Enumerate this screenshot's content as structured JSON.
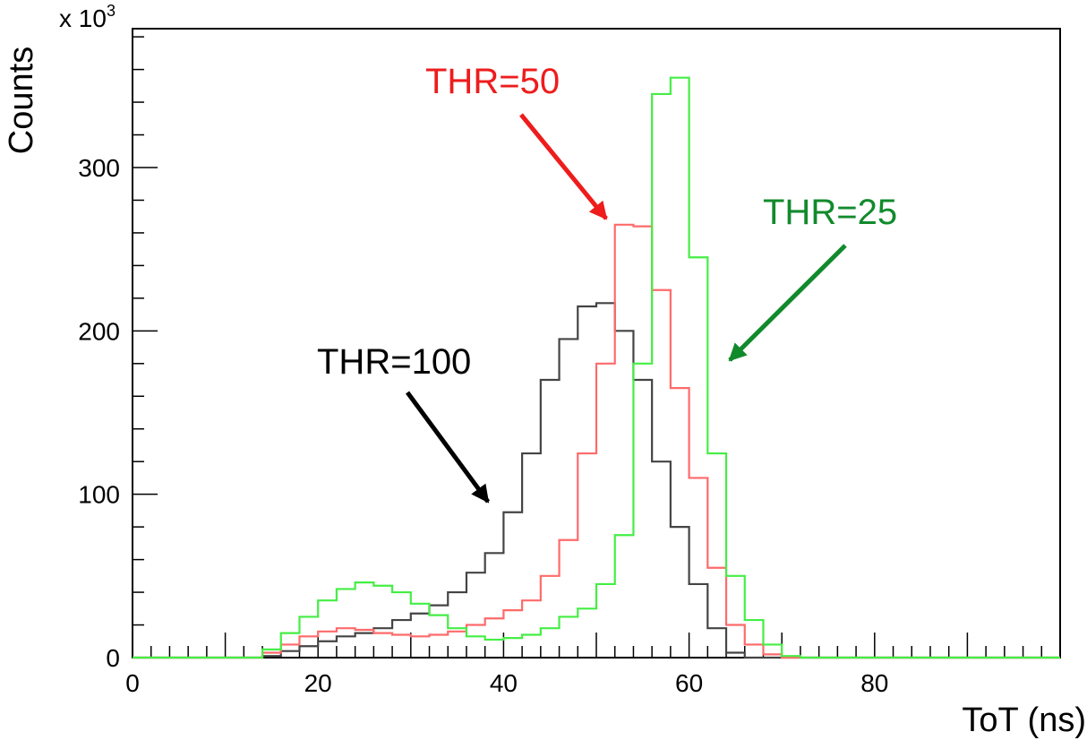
{
  "chart_data": {
    "type": "line",
    "step": true,
    "xlabel": "ToT (ns)",
    "ylabel": "Counts",
    "y_multiplier": "x 10",
    "y_multiplier_exp": "3",
    "xlim": [
      0,
      100
    ],
    "ylim": [
      0,
      385
    ],
    "x_ticks": [
      0,
      20,
      40,
      60,
      80
    ],
    "y_ticks": [
      0,
      100,
      200,
      300
    ],
    "grid": false,
    "bin_edges": [
      0,
      2,
      4,
      6,
      8,
      10,
      12,
      14,
      16,
      18,
      20,
      22,
      24,
      26,
      28,
      30,
      32,
      34,
      36,
      38,
      40,
      42,
      44,
      46,
      48,
      50,
      52,
      54,
      56,
      58,
      60,
      62,
      64,
      66,
      68,
      70,
      72,
      74,
      76,
      78,
      80,
      82,
      84,
      86,
      88,
      90,
      92,
      94,
      96,
      98,
      100
    ],
    "series": [
      {
        "name": "THR=100",
        "color": "#444444",
        "values": [
          0,
          0,
          0,
          0,
          0,
          0,
          0,
          1,
          4,
          7,
          10,
          13,
          15,
          18,
          23,
          27,
          32,
          40,
          52,
          64,
          89,
          125,
          170,
          195,
          215,
          217,
          200,
          170,
          120,
          80,
          45,
          18,
          3,
          0,
          0,
          0,
          0,
          0,
          0,
          0,
          0,
          0,
          0,
          0,
          0,
          0,
          0,
          0,
          0,
          0
        ]
      },
      {
        "name": "THR=50",
        "color": "#ff6a6a",
        "values": [
          0,
          0,
          0,
          0,
          0,
          0,
          0,
          3,
          8,
          13,
          16,
          18,
          17,
          15,
          14,
          13,
          14,
          16,
          20,
          24,
          29,
          35,
          50,
          72,
          125,
          180,
          265,
          264,
          225,
          165,
          110,
          55,
          20,
          8,
          2,
          0,
          0,
          0,
          0,
          0,
          0,
          0,
          0,
          0,
          0,
          0,
          0,
          0,
          0,
          0
        ]
      },
      {
        "name": "THR=25",
        "color": "#44ee44",
        "values": [
          0,
          0,
          0,
          0,
          0,
          0,
          0,
          5,
          15,
          25,
          35,
          42,
          46,
          44,
          40,
          33,
          26,
          18,
          13,
          11,
          12,
          14,
          18,
          25,
          30,
          45,
          75,
          180,
          345,
          355,
          245,
          125,
          50,
          23,
          8,
          1,
          0,
          0,
          0,
          0,
          0,
          0,
          0,
          0,
          0,
          0,
          0,
          0,
          0,
          0
        ]
      }
    ],
    "annotations": [
      {
        "text": "THR=50",
        "color": "#ee1c1c"
      },
      {
        "text": "THR=25",
        "color": "#118a2c"
      },
      {
        "text": "THR=100",
        "color": "#000000"
      }
    ]
  }
}
